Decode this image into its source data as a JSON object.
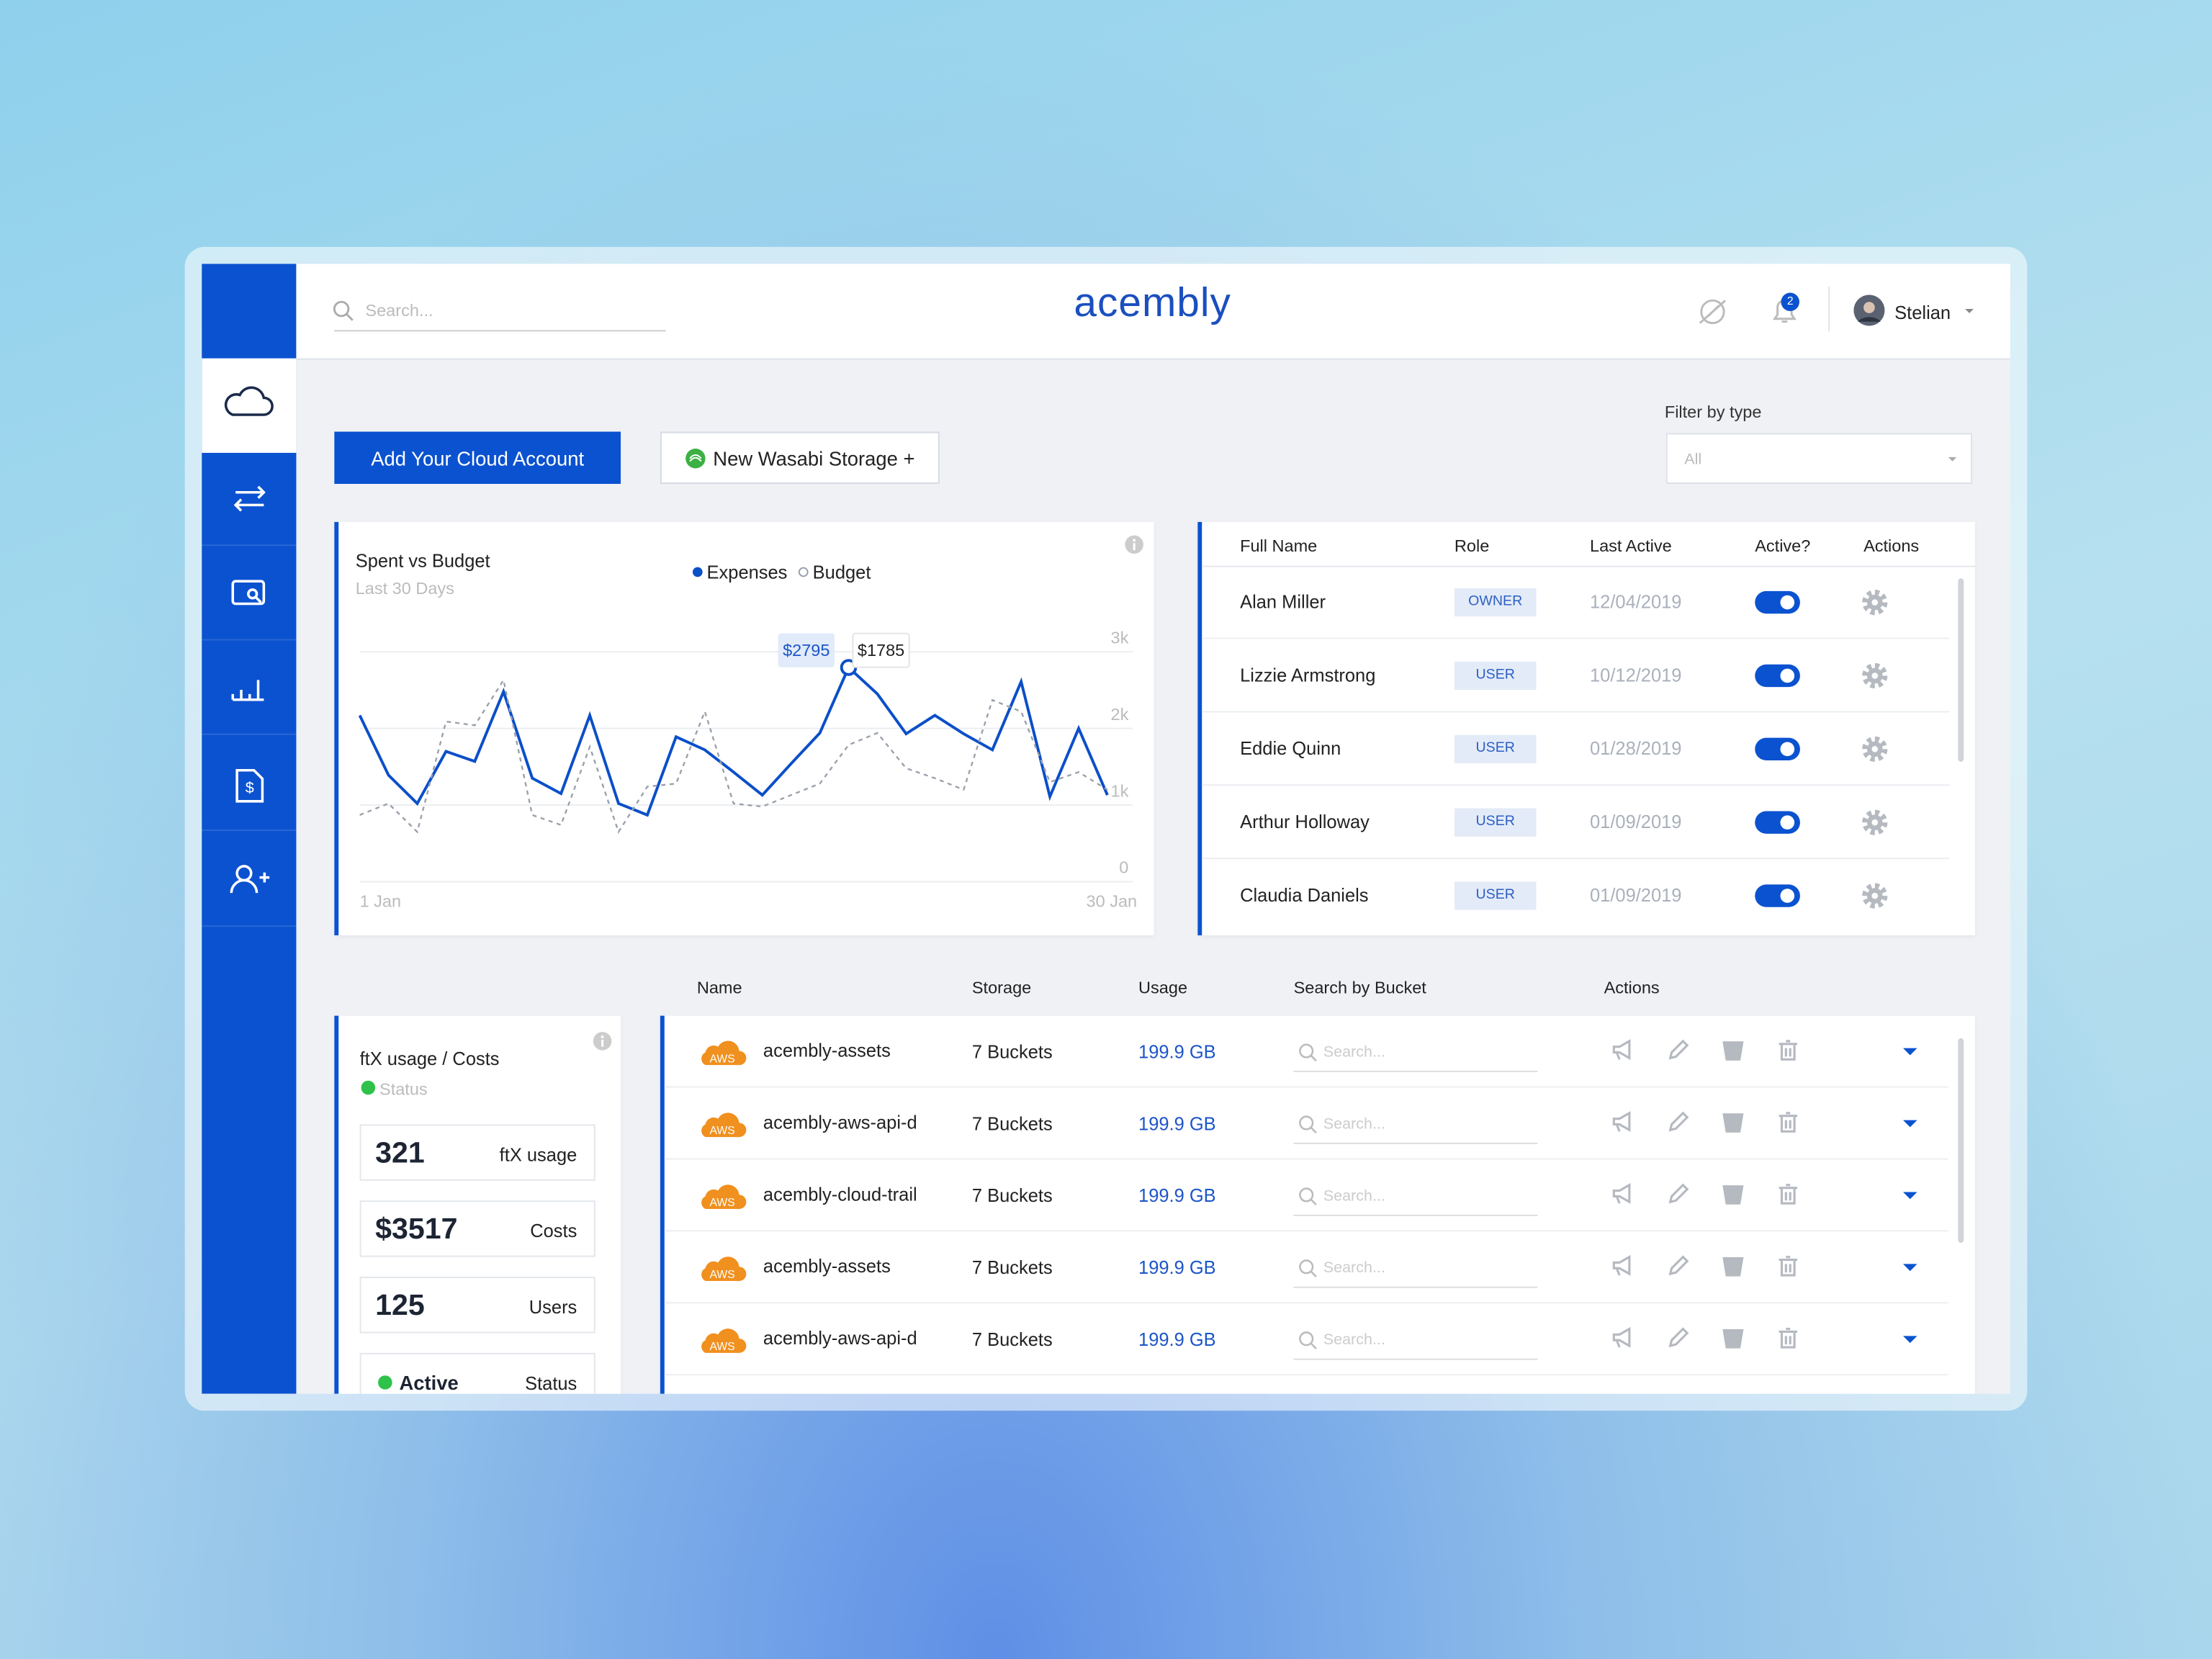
{
  "header": {
    "search_placeholder": "Search...",
    "logo": "acembly",
    "notifications": 2,
    "user": "Stelian"
  },
  "buttons": {
    "add_cloud": "Add Your Cloud Account",
    "new_wasabi": "New Wasabi Storage +"
  },
  "filter": {
    "label": "Filter by type",
    "value": "All"
  },
  "chart_data": {
    "type": "line",
    "title": "Spent vs Budget",
    "subtitle": "Last 30 Days",
    "categories": [
      "1 Jan",
      null,
      null,
      null,
      null,
      null,
      null,
      null,
      null,
      null,
      null,
      null,
      null,
      null,
      null,
      null,
      null,
      null,
      null,
      null,
      null,
      null,
      null,
      null,
      null,
      null,
      "30 Jan"
    ],
    "series": [
      {
        "name": "Expenses",
        "color": "#0b4fc9",
        "values": [
          2170,
          1390,
          1020,
          1700,
          1570,
          2480,
          1350,
          1150,
          2170,
          1020,
          870,
          1890,
          1720,
          1430,
          1130,
          1540,
          1940,
          2795,
          2450,
          1930,
          2170,
          1930,
          1720,
          2610,
          1110,
          2000,
          1130
        ],
        "value_labels": [
          null,
          null,
          null,
          null,
          null,
          null,
          null,
          null,
          null,
          null,
          null,
          null,
          null,
          null,
          null,
          null,
          null,
          "$2795",
          null,
          null,
          null,
          null,
          null,
          null,
          null,
          null,
          null
        ]
      },
      {
        "name": "Budget",
        "color": "#9aa0ab",
        "values": [
          870,
          1020,
          650,
          2090,
          2040,
          2630,
          870,
          740,
          1760,
          650,
          1240,
          1280,
          2220,
          1020,
          980,
          1130,
          1280,
          1785,
          1940,
          1480,
          1350,
          1200,
          2370,
          2220,
          1300,
          1430,
          1200
        ],
        "value_labels": [
          null,
          null,
          null,
          null,
          null,
          null,
          null,
          null,
          null,
          null,
          null,
          null,
          null,
          null,
          null,
          null,
          null,
          "$1785",
          null,
          null,
          null,
          null,
          null,
          null,
          null,
          null,
          null
        ]
      }
    ],
    "ylim": [
      0,
      3000
    ],
    "yticks": [
      0,
      {
        "value": 1000,
        "label": "1k"
      },
      {
        "value": 2000,
        "label": "2k"
      },
      {
        "value": 3000,
        "label": "3k"
      }
    ],
    "grid": true
  },
  "users_table": {
    "columns": [
      "Full Name",
      "Role",
      "Last Active",
      "Active?",
      "Actions"
    ],
    "rows": [
      {
        "name": "Alan Miller",
        "role": "OWNER",
        "last_active": "12/04/2019",
        "active": true
      },
      {
        "name": "Lizzie Armstrong",
        "role": "USER",
        "last_active": "10/12/2019",
        "active": true
      },
      {
        "name": "Eddie Quinn",
        "role": "USER",
        "last_active": "01/28/2019",
        "active": true
      },
      {
        "name": "Arthur Holloway",
        "role": "USER",
        "last_active": "01/09/2019",
        "active": true
      },
      {
        "name": "Claudia Daniels",
        "role": "USER",
        "last_active": "01/09/2019",
        "active": true
      }
    ]
  },
  "usage_card": {
    "title": "ftX usage / Costs",
    "status": "Status",
    "stats": [
      {
        "value": "321",
        "label": "ftX usage"
      },
      {
        "value": "$3517",
        "label": "Costs"
      },
      {
        "value": "125",
        "label": "Users"
      },
      {
        "value": "Active",
        "label": "Status"
      }
    ]
  },
  "buckets_table": {
    "columns": [
      "Name",
      "Storage",
      "Usage",
      "Search by Bucket",
      "Actions"
    ],
    "rows": [
      {
        "provider": "AWS",
        "name": "acembly-assets",
        "storage": "7 Buckets",
        "usage": "199.9 GB",
        "search_placeholder": "Search..."
      },
      {
        "provider": "AWS",
        "name": "acembly-aws-api-d",
        "storage": "7 Buckets",
        "usage": "199.9 GB",
        "search_placeholder": "Search..."
      },
      {
        "provider": "AWS",
        "name": "acembly-cloud-trail",
        "storage": "7 Buckets",
        "usage": "199.9 GB",
        "search_placeholder": "Search..."
      },
      {
        "provider": "AWS",
        "name": "acembly-assets",
        "storage": "7 Buckets",
        "usage": "199.9 GB",
        "search_placeholder": "Search..."
      },
      {
        "provider": "AWS",
        "name": "acembly-aws-api-d",
        "storage": "7 Buckets",
        "usage": "199.9 GB",
        "search_placeholder": "Search..."
      }
    ]
  }
}
